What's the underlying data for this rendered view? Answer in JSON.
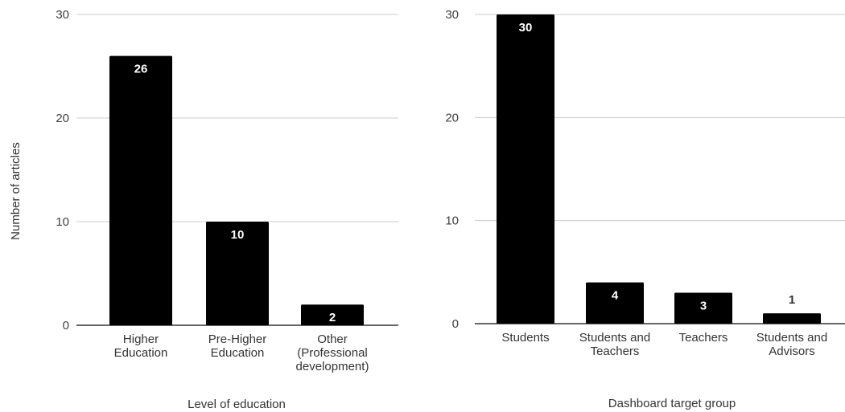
{
  "chart_data": [
    {
      "type": "bar",
      "title": "",
      "xlabel": "Level of education",
      "ylabel": "Number of articles",
      "ylim": [
        0,
        30
      ],
      "yticks": [
        "0",
        "10",
        "20",
        "30"
      ],
      "grid": true,
      "categories": [
        [
          "Higher",
          "Education"
        ],
        [
          "Pre-Higher",
          "Education"
        ],
        [
          "Other",
          "(Professional",
          "development)"
        ]
      ],
      "values": [
        26,
        10,
        2
      ],
      "value_labels": [
        "26",
        "10",
        "2"
      ],
      "bar_color": "#000000",
      "label_color": "#ffffff"
    },
    {
      "type": "bar",
      "title": "",
      "xlabel": "Dashboard target group",
      "ylabel": "",
      "ylim": [
        0,
        30
      ],
      "yticks": [
        "0",
        "10",
        "20",
        "30"
      ],
      "grid": true,
      "categories": [
        [
          "Students"
        ],
        [
          "Students and",
          "Teachers"
        ],
        [
          "Teachers"
        ],
        [
          "Students and",
          "Advisors"
        ]
      ],
      "values": [
        30,
        4,
        3,
        1
      ],
      "value_labels": [
        "30",
        "4",
        "3",
        "1"
      ],
      "bar_color": "#000000",
      "label_color": "#ffffff"
    }
  ]
}
